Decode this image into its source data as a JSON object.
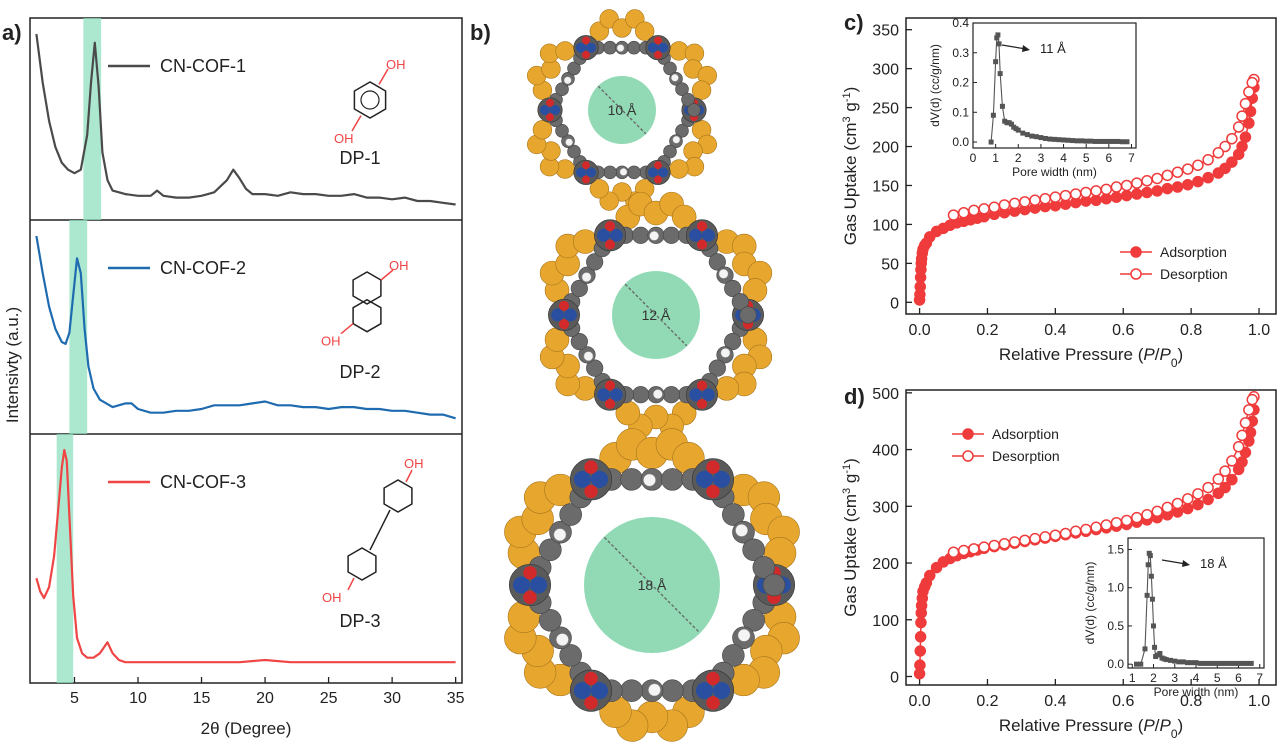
{
  "panels": {
    "a": "a)",
    "b": "b)",
    "c": "c)",
    "d": "d)"
  },
  "colors": {
    "cof1": "#4a4a4a",
    "cof2": "#1f6bb0",
    "cof3": "#ef4545",
    "iso": "#ef3b3b",
    "highlight": "#8fe0bf",
    "pore": "#7ed3a8",
    "framework_c": "#6b6b6b",
    "framework_n": "#2a4fa0",
    "framework_o": "#d22a2a",
    "framework_side": "#e7a72f"
  },
  "chart_data": [
    {
      "id": "xrd",
      "type": "line",
      "xlabel": "2θ (Degree)",
      "ylabel": "Intensivty (a.u.)",
      "xlim": [
        1.5,
        35.5
      ],
      "xticks": [
        "5",
        "10",
        "15",
        "20",
        "25",
        "30",
        "35"
      ],
      "series": [
        {
          "name": "CN-COF-1",
          "molecule": {
            "label": "DP-1",
            "substituent": "OH"
          },
          "highlight": [
            5.7,
            7.1
          ],
          "x": [
            2.0,
            2.5,
            3.0,
            3.5,
            4.0,
            4.5,
            5.0,
            5.5,
            6.0,
            6.3,
            6.6,
            6.9,
            7.2,
            7.6,
            8.0,
            9.0,
            10.0,
            11.0,
            11.5,
            12.0,
            13.0,
            14.0,
            15.0,
            16.0,
            17.0,
            17.5,
            18.0,
            18.5,
            19.0,
            20.0,
            21.0,
            22.0,
            23.0,
            24.0,
            25.0,
            26.0,
            27.0,
            28.0,
            29.0,
            30.0,
            31.0,
            32.0,
            33.0,
            34.0,
            35.0
          ],
          "y": [
            1.0,
            0.72,
            0.5,
            0.35,
            0.26,
            0.22,
            0.2,
            0.22,
            0.42,
            0.72,
            0.95,
            0.7,
            0.32,
            0.16,
            0.1,
            0.08,
            0.07,
            0.07,
            0.1,
            0.07,
            0.06,
            0.06,
            0.07,
            0.09,
            0.16,
            0.22,
            0.17,
            0.11,
            0.08,
            0.08,
            0.07,
            0.09,
            0.08,
            0.08,
            0.07,
            0.07,
            0.08,
            0.06,
            0.06,
            0.05,
            0.06,
            0.04,
            0.04,
            0.03,
            0.02
          ]
        },
        {
          "name": "CN-COF-2",
          "molecule": {
            "label": "DP-2",
            "substituent": "OH"
          },
          "highlight": [
            4.6,
            6.0
          ],
          "x": [
            2.0,
            2.5,
            3.0,
            3.5,
            4.0,
            4.3,
            4.6,
            4.9,
            5.2,
            5.5,
            5.8,
            6.1,
            6.5,
            7.0,
            8.0,
            9.0,
            9.5,
            10.0,
            11.0,
            12.0,
            13.0,
            14.0,
            15.0,
            16.0,
            17.0,
            18.0,
            19.0,
            20.0,
            21.0,
            22.0,
            23.0,
            24.0,
            25.0,
            26.0,
            27.0,
            28.0,
            29.0,
            30.0,
            31.0,
            32.0,
            33.0,
            34.0,
            35.0
          ],
          "y": [
            1.0,
            0.8,
            0.62,
            0.5,
            0.43,
            0.42,
            0.48,
            0.68,
            0.88,
            0.8,
            0.5,
            0.3,
            0.18,
            0.12,
            0.08,
            0.1,
            0.1,
            0.07,
            0.05,
            0.05,
            0.06,
            0.06,
            0.07,
            0.09,
            0.09,
            0.09,
            0.1,
            0.11,
            0.09,
            0.09,
            0.08,
            0.08,
            0.07,
            0.08,
            0.08,
            0.07,
            0.07,
            0.06,
            0.06,
            0.05,
            0.04,
            0.04,
            0.02
          ]
        },
        {
          "name": "CN-COF-3",
          "molecule": {
            "label": "DP-3",
            "substituent": "OH"
          },
          "highlight": [
            3.6,
            4.9
          ],
          "x": [
            2.0,
            2.3,
            2.6,
            3.0,
            3.4,
            3.7,
            4.0,
            4.2,
            4.4,
            4.6,
            4.9,
            5.2,
            5.6,
            6.0,
            6.5,
            7.0,
            7.6,
            8.0,
            8.5,
            9.0,
            10.0,
            12.0,
            15.0,
            18.0,
            20.0,
            22.0,
            25.0,
            28.0,
            30.0,
            32.0,
            35.0
          ],
          "y": [
            0.42,
            0.36,
            0.33,
            0.38,
            0.52,
            0.72,
            0.92,
            1.0,
            0.95,
            0.7,
            0.34,
            0.15,
            0.08,
            0.06,
            0.06,
            0.08,
            0.13,
            0.08,
            0.05,
            0.04,
            0.04,
            0.04,
            0.04,
            0.04,
            0.05,
            0.04,
            0.04,
            0.04,
            0.04,
            0.04,
            0.04
          ]
        }
      ]
    },
    {
      "id": "structures",
      "type": "other",
      "pores": [
        "10 Å",
        "12 Å",
        "18 Å"
      ]
    },
    {
      "id": "iso1",
      "type": "scatter",
      "xlabel": "Relative Pressure (P/P0)",
      "xlabel_parts": [
        "Relative Pressure (",
        "P",
        "/",
        "P",
        "0",
        ")"
      ],
      "ylabel": "Gas Uptake (cm³ g⁻¹)",
      "ylabel_parts": [
        "Gas Uptake (cm",
        "3",
        " g",
        "-1",
        ")"
      ],
      "xlim": [
        -0.04,
        1.05
      ],
      "ylim": [
        -15,
        365
      ],
      "xticks": [
        "0.0",
        "0.2",
        "0.4",
        "0.6",
        "0.8",
        "1.0"
      ],
      "yticks": [
        "0",
        "50",
        "100",
        "150",
        "200",
        "250",
        "300",
        "350"
      ],
      "legend": "bottom-right",
      "series": [
        {
          "name": "Adsorption",
          "x": [
            0.0,
            0.001,
            0.002,
            0.003,
            0.004,
            0.005,
            0.006,
            0.008,
            0.01,
            0.015,
            0.02,
            0.03,
            0.05,
            0.07,
            0.09,
            0.11,
            0.13,
            0.15,
            0.17,
            0.19,
            0.22,
            0.25,
            0.28,
            0.31,
            0.34,
            0.37,
            0.4,
            0.43,
            0.46,
            0.49,
            0.52,
            0.55,
            0.58,
            0.61,
            0.64,
            0.67,
            0.7,
            0.73,
            0.76,
            0.79,
            0.82,
            0.85,
            0.88,
            0.9,
            0.92,
            0.94,
            0.95,
            0.96,
            0.97,
            0.975,
            0.98,
            0.985
          ],
          "y": [
            3,
            10,
            20,
            32,
            42,
            50,
            56,
            63,
            68,
            73,
            76,
            84,
            91,
            95,
            99,
            102,
            104,
            106,
            108,
            110,
            113,
            115,
            117,
            119,
            121,
            123,
            124,
            126,
            128,
            130,
            131,
            133,
            135,
            137,
            139,
            141,
            143,
            146,
            148,
            151,
            155,
            160,
            166,
            172,
            180,
            190,
            200,
            212,
            230,
            245,
            262,
            276
          ]
        },
        {
          "name": "Desorption",
          "x": [
            0.985,
            0.98,
            0.97,
            0.96,
            0.95,
            0.94,
            0.92,
            0.9,
            0.88,
            0.85,
            0.82,
            0.79,
            0.76,
            0.73,
            0.7,
            0.67,
            0.64,
            0.61,
            0.58,
            0.55,
            0.52,
            0.49,
            0.46,
            0.43,
            0.4,
            0.37,
            0.34,
            0.31,
            0.28,
            0.25,
            0.22,
            0.19,
            0.16,
            0.13,
            0.1
          ],
          "y": [
            286,
            282,
            270,
            255,
            239,
            225,
            210,
            200,
            192,
            183,
            176,
            171,
            167,
            163,
            159,
            156,
            153,
            150,
            148,
            145,
            143,
            141,
            139,
            137,
            135,
            133,
            131,
            129,
            127,
            125,
            122,
            120,
            118,
            115,
            112
          ]
        }
      ],
      "inset": {
        "type": "scatter",
        "xlabel": "Pore width (nm)",
        "ylabel": "dV(d) (cc/g/nm)",
        "xlim": [
          0,
          7.2
        ],
        "ylim": [
          -0.02,
          0.4
        ],
        "xticks": [
          "0",
          "1",
          "2",
          "3",
          "4",
          "5",
          "6",
          "7"
        ],
        "yticks": [
          "0.0",
          "0.1",
          "0.2",
          "0.3",
          "0.4"
        ],
        "annotation": "11 Å",
        "x": [
          0.8,
          0.9,
          1.0,
          1.05,
          1.1,
          1.15,
          1.2,
          1.3,
          1.4,
          1.5,
          1.6,
          1.7,
          1.8,
          1.9,
          2.0,
          2.2,
          2.4,
          2.6,
          2.8,
          3.0,
          3.2,
          3.4,
          3.6,
          3.8,
          4.0,
          4.2,
          4.4,
          4.6,
          4.8,
          5.0,
          5.2,
          5.4,
          5.6,
          5.8,
          6.0,
          6.2,
          6.4,
          6.6,
          6.8
        ],
        "y": [
          0.0,
          0.09,
          0.27,
          0.35,
          0.36,
          0.33,
          0.23,
          0.12,
          0.07,
          0.065,
          0.065,
          0.06,
          0.05,
          0.045,
          0.04,
          0.03,
          0.025,
          0.02,
          0.018,
          0.015,
          0.012,
          0.01,
          0.009,
          0.008,
          0.007,
          0.006,
          0.005,
          0.004,
          0.004,
          0.003,
          0.003,
          0.002,
          0.002,
          0.002,
          0.002,
          0.002,
          0.002,
          0.001,
          0.001
        ]
      }
    },
    {
      "id": "iso2",
      "type": "scatter",
      "xlabel": "Relative Pressure (P/P0)",
      "xlabel_parts": [
        "Relative Pressure (",
        "P",
        "/",
        "P",
        "0",
        ")"
      ],
      "ylabel": "Gas Uptake (cm³ g⁻¹)",
      "ylabel_parts": [
        "Gas Uptake (cm",
        "3",
        " g",
        "-1",
        ")"
      ],
      "xlim": [
        -0.04,
        1.05
      ],
      "ylim": [
        -15,
        505
      ],
      "xticks": [
        "0.0",
        "0.2",
        "0.4",
        "0.6",
        "0.8",
        "1.0"
      ],
      "yticks": [
        "0",
        "100",
        "200",
        "300",
        "400",
        "500"
      ],
      "legend": "top-left",
      "series": [
        {
          "name": "Adsorption",
          "x": [
            0.0,
            0.001,
            0.002,
            0.003,
            0.004,
            0.005,
            0.006,
            0.008,
            0.01,
            0.015,
            0.02,
            0.03,
            0.05,
            0.07,
            0.09,
            0.11,
            0.13,
            0.15,
            0.17,
            0.19,
            0.22,
            0.25,
            0.28,
            0.31,
            0.34,
            0.37,
            0.4,
            0.43,
            0.46,
            0.49,
            0.52,
            0.55,
            0.58,
            0.61,
            0.64,
            0.67,
            0.7,
            0.73,
            0.76,
            0.79,
            0.82,
            0.85,
            0.88,
            0.9,
            0.92,
            0.94,
            0.95,
            0.96,
            0.97,
            0.975,
            0.98,
            0.985
          ],
          "y": [
            5,
            20,
            45,
            70,
            95,
            112,
            125,
            138,
            150,
            158,
            165,
            178,
            192,
            202,
            208,
            213,
            217,
            220,
            223,
            226,
            229,
            232,
            235,
            238,
            241,
            244,
            247,
            250,
            253,
            256,
            259,
            262,
            265,
            268,
            272,
            276,
            280,
            285,
            290,
            296,
            303,
            312,
            323,
            333,
            347,
            365,
            378,
            395,
            415,
            430,
            450,
            470
          ]
        },
        {
          "name": "Desorption",
          "x": [
            0.985,
            0.98,
            0.97,
            0.96,
            0.95,
            0.94,
            0.92,
            0.9,
            0.88,
            0.85,
            0.82,
            0.79,
            0.76,
            0.73,
            0.7,
            0.67,
            0.64,
            0.61,
            0.58,
            0.55,
            0.52,
            0.49,
            0.46,
            0.43,
            0.4,
            0.37,
            0.34,
            0.31,
            0.28,
            0.25,
            0.22,
            0.19,
            0.16,
            0.13,
            0.1
          ],
          "y": [
            493,
            488,
            470,
            447,
            425,
            405,
            380,
            362,
            348,
            333,
            322,
            313,
            305,
            298,
            291,
            285,
            280,
            275,
            271,
            267,
            263,
            259,
            256,
            252,
            249,
            246,
            243,
            240,
            237,
            234,
            231,
            228,
            225,
            222,
            219
          ]
        }
      ],
      "inset": {
        "type": "scatter",
        "xlabel": "Pore width (nm)",
        "ylabel": "dV(d) (cc/g/nm)",
        "xlim": [
          0.8,
          7.2
        ],
        "ylim": [
          -0.05,
          1.65
        ],
        "xticks": [
          "1",
          "2",
          "3",
          "4",
          "5",
          "6",
          "7"
        ],
        "yticks": [
          "0.0",
          "0.5",
          "1.0",
          "1.5"
        ],
        "annotation": "18 Å",
        "x": [
          1.2,
          1.4,
          1.6,
          1.7,
          1.75,
          1.8,
          1.85,
          1.9,
          1.95,
          2.0,
          2.05,
          2.1,
          2.2,
          2.3,
          2.4,
          2.5,
          2.6,
          2.8,
          3.0,
          3.2,
          3.4,
          3.6,
          3.8,
          4.0,
          4.2,
          4.4,
          4.6,
          4.8,
          5.0,
          5.2,
          5.4,
          5.6,
          5.8,
          6.0,
          6.2,
          6.4,
          6.6
        ],
        "y": [
          0.0,
          0.0,
          0.2,
          0.9,
          1.3,
          1.45,
          1.42,
          1.15,
          0.85,
          0.5,
          0.22,
          0.1,
          0.12,
          0.14,
          0.08,
          0.07,
          0.06,
          0.05,
          0.04,
          0.03,
          0.03,
          0.02,
          0.02,
          0.02,
          0.01,
          0.01,
          0.01,
          0.01,
          0.01,
          0.01,
          0.01,
          0.01,
          0.01,
          0.01,
          0.01,
          0.01,
          0.01
        ]
      }
    }
  ]
}
